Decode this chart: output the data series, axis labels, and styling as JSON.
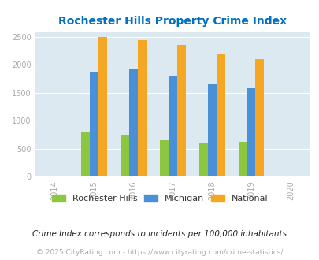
{
  "title": "Rochester Hills Property Crime Index",
  "years": [
    2015,
    2016,
    2017,
    2018,
    2019
  ],
  "rochester_hills": [
    790,
    750,
    655,
    600,
    625
  ],
  "michigan": [
    1880,
    1920,
    1805,
    1645,
    1580
  ],
  "national": [
    2495,
    2445,
    2355,
    2200,
    2095
  ],
  "bar_colors": {
    "rochester_hills": "#8dc63f",
    "michigan": "#4a90d9",
    "national": "#f5a623"
  },
  "xlim": [
    2013.5,
    2020.5
  ],
  "ylim": [
    0,
    2600
  ],
  "yticks": [
    0,
    500,
    1000,
    1500,
    2000,
    2500
  ],
  "xticks": [
    2014,
    2015,
    2016,
    2017,
    2018,
    2019,
    2020
  ],
  "title_color": "#0070c0",
  "background_color": "#dce9f0",
  "legend_labels": [
    "Rochester Hills",
    "Michigan",
    "National"
  ],
  "footnote1": "Crime Index corresponds to incidents per 100,000 inhabitants",
  "footnote2": "© 2025 CityRating.com - https://www.cityrating.com/crime-statistics/",
  "bar_width": 0.22
}
